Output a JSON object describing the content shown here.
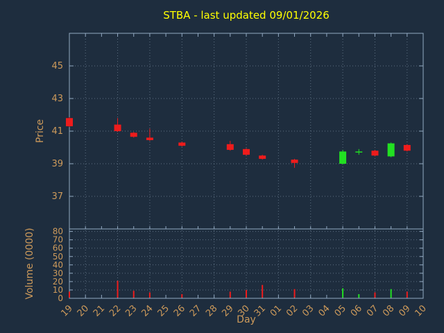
{
  "chart_data": {
    "type": "candlestick",
    "title": "STBA - last updated 09/01/2026",
    "xlabel": "Day",
    "ylabel": "Price",
    "volume_ylabel": "Volume (0000)",
    "x_ticks": [
      "19",
      "20",
      "21",
      "22",
      "23",
      "24",
      "25",
      "26",
      "27",
      "28",
      "29",
      "30",
      "31",
      "01",
      "02",
      "03",
      "04",
      "05",
      "06",
      "07",
      "08",
      "09",
      "10"
    ],
    "price_ticks": [
      37,
      39,
      41,
      43,
      45
    ],
    "price_range": [
      35,
      47
    ],
    "volume_ticks": [
      0,
      10,
      20,
      30,
      40,
      50,
      60,
      70,
      80
    ],
    "volume_range": [
      0,
      83
    ],
    "grid": true,
    "legend": "none",
    "candles": [
      {
        "day": "19",
        "open": 41.8,
        "high": 41.85,
        "low": 41.25,
        "close": 41.3,
        "direction": "down",
        "volume": 8
      },
      {
        "day": "22",
        "open": 41.4,
        "high": 41.8,
        "low": 40.95,
        "close": 41.0,
        "direction": "down",
        "volume": 21
      },
      {
        "day": "23",
        "open": 40.9,
        "high": 40.95,
        "low": 40.6,
        "close": 40.65,
        "direction": "down",
        "volume": 9
      },
      {
        "day": "24",
        "open": 40.6,
        "high": 41.15,
        "low": 40.4,
        "close": 40.45,
        "direction": "down",
        "volume": 7
      },
      {
        "day": "26",
        "open": 40.3,
        "high": 40.35,
        "low": 40.05,
        "close": 40.1,
        "direction": "down",
        "volume": 5
      },
      {
        "day": "29",
        "open": 40.2,
        "high": 40.4,
        "low": 39.8,
        "close": 39.85,
        "direction": "down",
        "volume": 8
      },
      {
        "day": "30",
        "open": 39.9,
        "high": 39.95,
        "low": 39.5,
        "close": 39.55,
        "direction": "down",
        "volume": 10
      },
      {
        "day": "31",
        "open": 39.5,
        "high": 39.55,
        "low": 39.25,
        "close": 39.3,
        "direction": "down",
        "volume": 16
      },
      {
        "day": "02",
        "open": 39.25,
        "high": 39.3,
        "low": 38.75,
        "close": 39.05,
        "direction": "down",
        "volume": 11
      },
      {
        "day": "05",
        "open": 39.0,
        "high": 39.85,
        "low": 38.95,
        "close": 39.75,
        "direction": "up",
        "volume": 12
      },
      {
        "day": "06",
        "open": 39.7,
        "high": 39.9,
        "low": 39.55,
        "close": 39.75,
        "direction": "up",
        "volume": 5
      },
      {
        "day": "07",
        "open": 39.8,
        "high": 39.85,
        "low": 39.45,
        "close": 39.5,
        "direction": "down",
        "volume": 7
      },
      {
        "day": "08",
        "open": 39.45,
        "high": 40.3,
        "low": 39.4,
        "close": 40.25,
        "direction": "up",
        "volume": 11
      },
      {
        "day": "09",
        "open": 40.15,
        "high": 40.2,
        "low": 39.75,
        "close": 39.8,
        "direction": "down",
        "volume": 8
      }
    ],
    "colors": {
      "background": "#1e2d3e",
      "title": "#ffff00",
      "axis_text": "#cd9a5b",
      "border": "#93aac2",
      "grid": "#5d6f82",
      "up": "#22e022",
      "down": "#ee1c1c"
    }
  }
}
